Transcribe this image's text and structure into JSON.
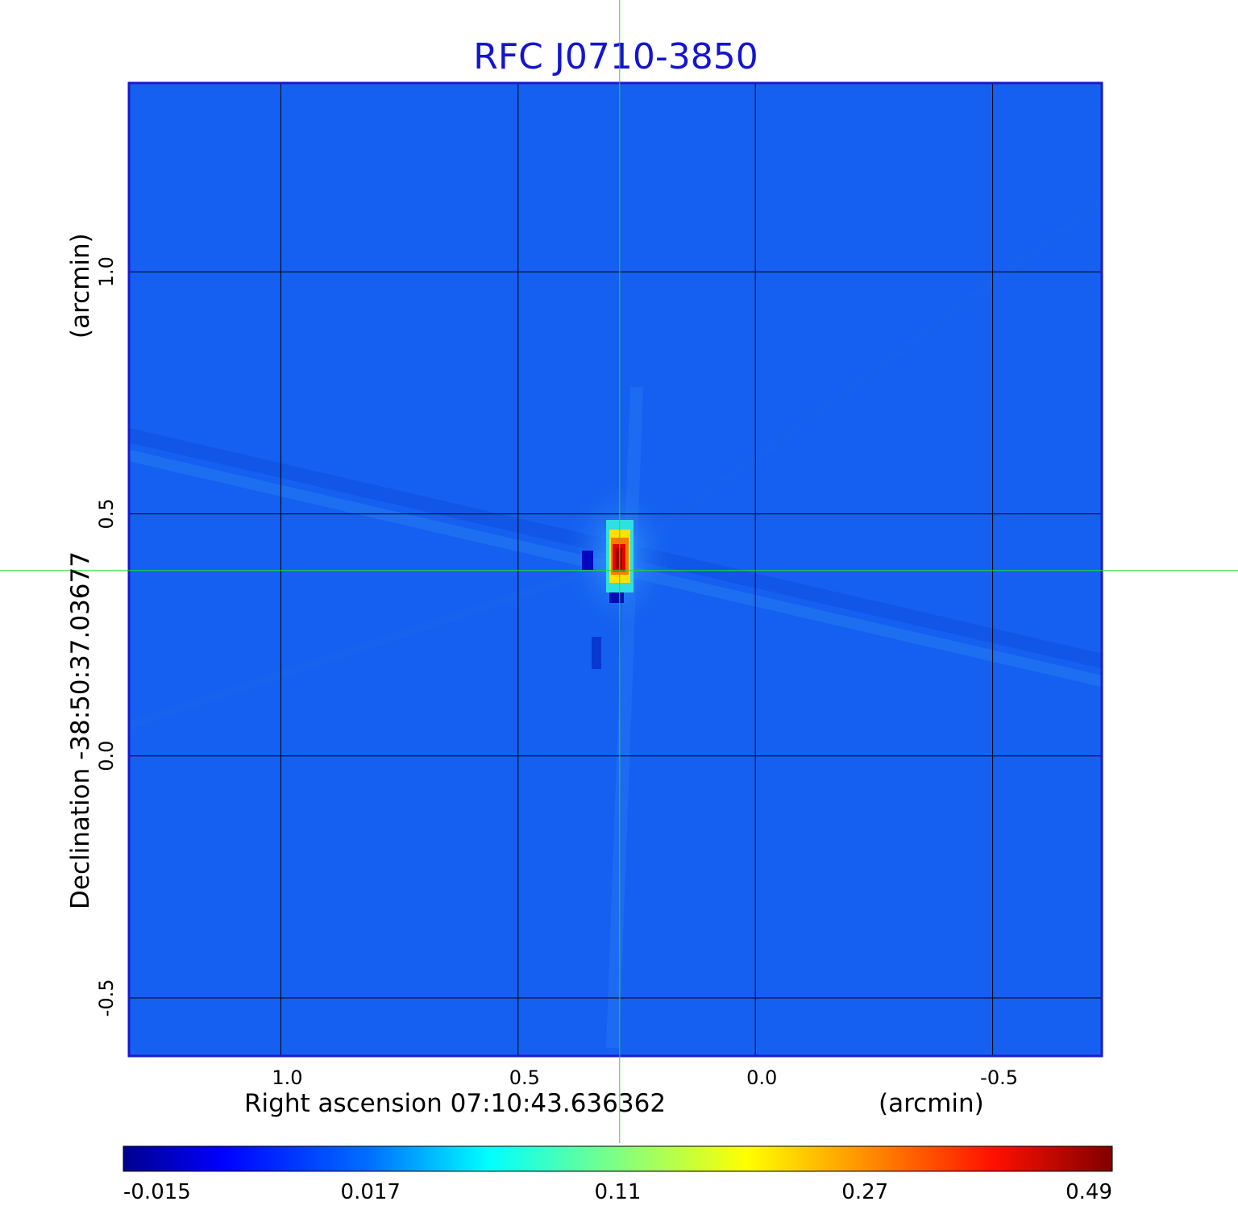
{
  "chart_data": {
    "type": "heatmap",
    "title": "RFC J0710-3850",
    "xlabel": "Right ascension  07:10:43.636362",
    "xunit": "(arcmin)",
    "ylabel": "Declination  -38:50:37.03677",
    "yunit": "(arcmin)",
    "xlim": [
      1.32,
      -0.73
    ],
    "ylim": [
      -0.62,
      1.39
    ],
    "x_ticks": [
      {
        "value": 1.0,
        "label": "1.0"
      },
      {
        "value": 0.5,
        "label": "0.5"
      },
      {
        "value": 0.0,
        "label": "0.0"
      },
      {
        "value": -0.5,
        "label": "-0.5"
      }
    ],
    "y_ticks": [
      {
        "value": 1.0,
        "label": "1.0"
      },
      {
        "value": 0.5,
        "label": "0.5"
      },
      {
        "value": 0.0,
        "label": "0.0"
      },
      {
        "value": -0.5,
        "label": "-0.5"
      }
    ],
    "grid": true,
    "crosshair": {
      "x": 0.286,
      "y": 0.383,
      "color": "#22dd22"
    },
    "source_peak": {
      "x": 0.286,
      "y": 0.41,
      "value": 0.49
    },
    "colorbar": {
      "orientation": "horizontal",
      "colormap": "jet",
      "ticks": [
        "-0.015",
        "0.017",
        "0.11",
        "0.27",
        "0.49"
      ]
    },
    "colors": {
      "background_field": "#1560f0",
      "frame": "#1a1ad0",
      "grid": "#000000",
      "title": "#1414d2"
    }
  }
}
